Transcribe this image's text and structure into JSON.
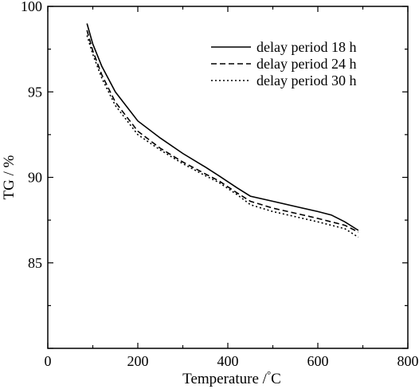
{
  "chart_data": {
    "type": "line",
    "title": "",
    "xlabel": "Temperature /",
    "xlabel_unit": "°C",
    "ylabel": "TG / %",
    "xlim": [
      0,
      800
    ],
    "ylim": [
      80,
      100
    ],
    "xticks": [
      0,
      200,
      400,
      600,
      800
    ],
    "yticks": [
      85,
      90,
      95,
      100
    ],
    "grid": false,
    "legend_position": "top-right",
    "series": [
      {
        "name": "delay period 18 h",
        "style": "solid",
        "x": [
          87,
          100,
          120,
          150,
          200,
          250,
          300,
          350,
          380,
          420,
          450,
          500,
          550,
          600,
          630,
          660,
          690
        ],
        "y": [
          99.0,
          97.8,
          96.5,
          95.0,
          93.3,
          92.3,
          91.4,
          90.6,
          90.1,
          89.4,
          88.9,
          88.6,
          88.3,
          88.0,
          87.8,
          87.4,
          86.9
        ]
      },
      {
        "name": "delay period 24 h",
        "style": "dashed",
        "x": [
          87,
          100,
          120,
          150,
          200,
          250,
          300,
          350,
          380,
          420,
          450,
          500,
          550,
          600,
          630,
          660,
          690
        ],
        "y": [
          98.6,
          97.4,
          96.0,
          94.4,
          92.7,
          91.7,
          90.9,
          90.2,
          89.8,
          89.1,
          88.6,
          88.2,
          87.9,
          87.6,
          87.4,
          87.2,
          86.8
        ]
      },
      {
        "name": "delay period 30 h",
        "style": "dotted",
        "x": [
          87,
          100,
          120,
          150,
          200,
          250,
          300,
          350,
          380,
          420,
          450,
          500,
          550,
          600,
          630,
          660,
          690
        ],
        "y": [
          98.3,
          97.2,
          95.8,
          94.2,
          92.5,
          91.6,
          90.8,
          90.1,
          89.7,
          89.0,
          88.4,
          88.0,
          87.7,
          87.4,
          87.2,
          87.0,
          86.5
        ]
      }
    ]
  }
}
